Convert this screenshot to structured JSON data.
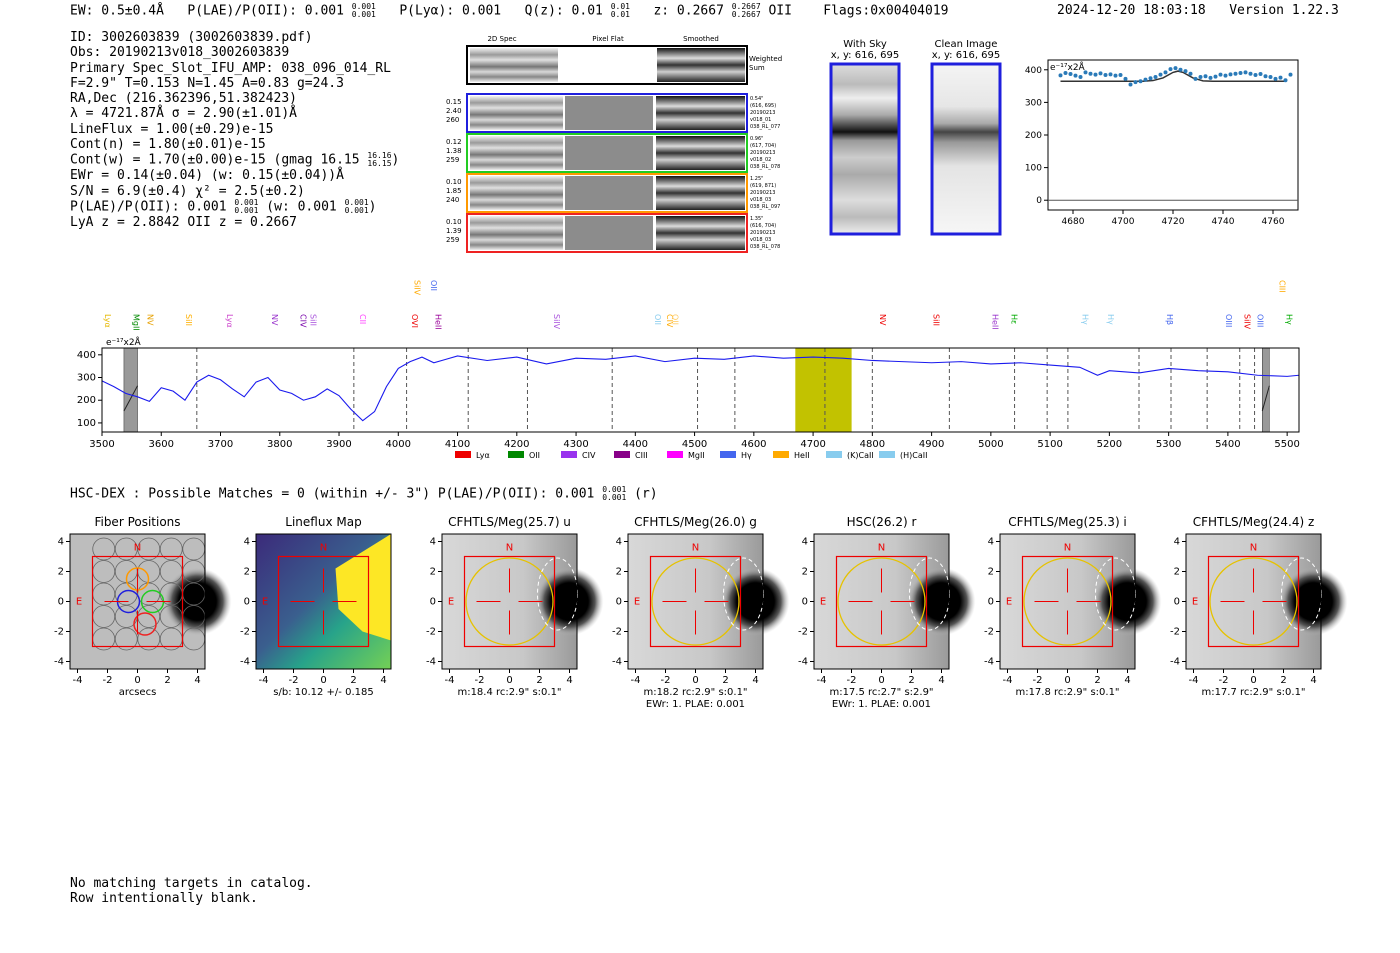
{
  "header": {
    "ew": "EW: 0.5±0.4Å",
    "plae": "P(LAE)/P(OII): 0.001",
    "plae_hi": "0.001",
    "plae_lo": "0.001",
    "plya": "P(Lyα): 0.001",
    "qz": "Q(z): 0.01",
    "qz_hi": "0.01",
    "qz_lo": "0.01",
    "z": "z: 0.2667",
    "z_hi": "0.2667",
    "z_lo": "0.2667",
    "z_line": "OII",
    "flags": "Flags:0x00404019",
    "timestamp": "2024-12-20 18:03:18",
    "version": "Version 1.22.3"
  },
  "info": {
    "id": "ID: 3002603839 (3002603839.pdf)",
    "obs": "Obs: 20190213v018_3002603839",
    "slot": "Primary Spec_Slot_IFU_AMP: 038_096_014_RL",
    "fit": "F=2.9\"  T=0.153  N=1.45  A=0.83  g=24.3",
    "radec": "RA,Dec (216.362396,51.382423)",
    "lambda": "λ = 4721.87Å  σ = 2.90(±1.01)Å",
    "lineflux": "LineFlux = 1.00(±0.29)e-15",
    "contn": "Cont(n) = 1.80(±0.01)e-15",
    "contw": "Cont(w) = 1.70(±0.00)e-15 (gmag 16.15",
    "contw_hi": "16.16",
    "contw_lo": "16.15",
    "contw_end": ")",
    "ewr": "EWr = 0.14(±0.04) (w: 0.15(±0.04))Å",
    "sn": "S/N = 6.9(±0.4)  χ² = 2.5(±0.2)",
    "plae": "P(LAE)/P(OII): 0.001",
    "plae_hi": "0.001",
    "plae_lo": "0.001",
    "plae_w": "(w: 0.001",
    "plae_w_hi": "0.001",
    "plae_w_lo": "0.001",
    "plae_w_end": ")",
    "lya": "LyA z = 2.8842   OII z = 0.2667"
  },
  "cutouts": {
    "col_headers": [
      "2D Spec",
      "Pixel Flat",
      "Smoothed"
    ],
    "weighted_label": [
      "Weighted",
      "Sum"
    ],
    "rows": [
      {
        "left": [
          "0.15",
          "2.40",
          "260"
        ],
        "right": [
          "0.54\"",
          "(616, 695)",
          "20190213",
          "v018_01",
          "038_RL_077"
        ],
        "color": "#1f1fdd"
      },
      {
        "left": [
          "0.12",
          "1.38",
          "259"
        ],
        "right": [
          "0.96\"",
          "(617, 704)",
          "20190213",
          "v018_02",
          "038_RL_078"
        ],
        "color": "#22cc22"
      },
      {
        "left": [
          "0.10",
          "1.85",
          "240"
        ],
        "right": [
          "1.25\"",
          "(619, 871)",
          "20190213",
          "v018_03",
          "038_RL_097"
        ],
        "color": "#ff9900"
      },
      {
        "left": [
          "0.10",
          "1.39",
          "259"
        ],
        "right": [
          "1.35\"",
          "(616, 704)",
          "20190213",
          "v018_03",
          "038_RL_078"
        ],
        "color": "#ee2222"
      }
    ]
  },
  "sky_panels": [
    {
      "title": "With Sky",
      "subtitle": "x, y: 616, 695"
    },
    {
      "title": "Clean Image",
      "subtitle": "x, y: 616, 695"
    }
  ],
  "hsc": {
    "line": "HSC-DEX : Possible Matches = 0 (within +/- 3\")  P(LAE)/P(OII): 0.001",
    "hi": "0.001",
    "lo": "0.001",
    "end": "(r)"
  },
  "catalog_note": [
    "No matching targets in catalog.",
    "Row intentionally blank."
  ],
  "chart_data": [
    {
      "type": "scatter",
      "name": "zoom-spectrum",
      "unit_label": "e⁻¹⁷x2Å",
      "xlim": [
        4670,
        4770
      ],
      "ylim": [
        -30,
        430
      ],
      "xticks": [
        4680,
        4700,
        4720,
        4740,
        4760
      ],
      "yticks": [
        0,
        100,
        200,
        300,
        400
      ],
      "points_x": [
        4675,
        4677,
        4679,
        4681,
        4683,
        4685,
        4687,
        4689,
        4691,
        4693,
        4695,
        4697,
        4699,
        4701,
        4703,
        4705,
        4707,
        4709,
        4711,
        4713,
        4715,
        4717,
        4719,
        4721,
        4723,
        4725,
        4727,
        4729,
        4731,
        4733,
        4735,
        4737,
        4739,
        4741,
        4743,
        4745,
        4747,
        4749,
        4751,
        4753,
        4755,
        4757,
        4759,
        4761,
        4763,
        4765,
        4767
      ],
      "points_y": [
        383,
        390,
        387,
        382,
        378,
        392,
        388,
        385,
        389,
        384,
        386,
        382,
        384,
        372,
        355,
        362,
        365,
        370,
        374,
        378,
        385,
        392,
        402,
        405,
        400,
        396,
        388,
        372,
        378,
        380,
        375,
        379,
        385,
        382,
        386,
        388,
        390,
        392,
        388,
        384,
        387,
        380,
        378,
        372,
        376,
        368,
        385
      ],
      "model_x": [
        4675,
        4700,
        4708,
        4712,
        4716,
        4720,
        4722,
        4724,
        4728,
        4732,
        4736,
        4765
      ],
      "model_y": [
        365,
        365,
        365,
        367,
        375,
        392,
        396,
        392,
        375,
        366,
        365,
        365
      ]
    },
    {
      "type": "line",
      "name": "full-spectrum",
      "unit_label": "e⁻¹⁷x2Å",
      "xlim": [
        3500,
        5520
      ],
      "ylim": [
        60,
        430
      ],
      "xticks": [
        3500,
        3600,
        3700,
        3800,
        3900,
        4000,
        4100,
        4200,
        4300,
        4400,
        4500,
        4600,
        4700,
        4800,
        4900,
        5000,
        5100,
        5200,
        5300,
        5400,
        5500
      ],
      "yticks": [
        100,
        200,
        300,
        400
      ],
      "highlight_x": [
        4670,
        4765
      ],
      "masked_x": [
        [
          3537,
          3560
        ],
        [
          5458,
          5470
        ]
      ],
      "dashed_x": [
        3660,
        3925,
        4014,
        4118,
        4218,
        4361,
        4505,
        4568,
        4720,
        4800,
        4930,
        5040,
        5095,
        5130,
        5250,
        5304,
        5365,
        5420,
        5445
      ],
      "points_x": [
        3500,
        3520,
        3540,
        3560,
        3580,
        3600,
        3620,
        3640,
        3660,
        3680,
        3700,
        3720,
        3740,
        3760,
        3780,
        3800,
        3820,
        3840,
        3860,
        3880,
        3900,
        3920,
        3940,
        3960,
        3980,
        4000,
        4020,
        4040,
        4060,
        4080,
        4100,
        4150,
        4200,
        4250,
        4300,
        4350,
        4400,
        4450,
        4500,
        4550,
        4600,
        4650,
        4700,
        4750,
        4800,
        4850,
        4900,
        4950,
        5000,
        5050,
        5100,
        5150,
        5180,
        5200,
        5250,
        5300,
        5350,
        5400,
        5450,
        5500,
        5520
      ],
      "points_y": [
        285,
        260,
        230,
        215,
        195,
        255,
        240,
        200,
        280,
        310,
        290,
        250,
        215,
        280,
        300,
        245,
        230,
        200,
        215,
        250,
        220,
        160,
        110,
        150,
        260,
        340,
        370,
        390,
        365,
        380,
        395,
        375,
        390,
        360,
        385,
        380,
        395,
        370,
        385,
        380,
        395,
        385,
        390,
        385,
        375,
        370,
        365,
        370,
        360,
        365,
        355,
        345,
        310,
        330,
        320,
        340,
        330,
        325,
        310,
        305,
        310
      ]
    }
  ],
  "line_labels": [
    {
      "label": "Lyα",
      "color": "#e6b800",
      "x": 3500
    },
    {
      "label": "MgII",
      "color": "#008800",
      "x": 3548
    },
    {
      "label": "NV",
      "color": "#e6a000",
      "x": 3572
    },
    {
      "label": "SiII",
      "color": "#ffb000",
      "x": 3637
    },
    {
      "label": "Lyα",
      "color": "#cc44cc",
      "x": 3706
    },
    {
      "label": "NV",
      "color": "#9933cc",
      "x": 3782
    },
    {
      "label": "CIV",
      "color": "#7700aa",
      "x": 3830
    },
    {
      "label": "SiII",
      "color": "#aa55dd",
      "x": 3847
    },
    {
      "label": "CII",
      "color": "#ff44ff",
      "x": 3930
    },
    {
      "label": "OVI",
      "color": "#ee0000",
      "x": 4018
    },
    {
      "label": "SiIV",
      "color": "#ffaa00",
      "x": 4022,
      "upper": true
    },
    {
      "label": "OII",
      "color": "#4466ee",
      "x": 4050,
      "upper": true
    },
    {
      "label": "HeII",
      "color": "#990099",
      "x": 4058
    },
    {
      "label": "SiIV",
      "color": "#aa55dd",
      "x": 4258
    },
    {
      "label": "OII",
      "color": "#88ccee",
      "x": 4428
    },
    {
      "label": "CIV",
      "color": "#ffaa00",
      "x": 4448
    },
    {
      "label": "OII",
      "color": "#ffcc66",
      "x": 4458
    },
    {
      "label": "NV",
      "color": "#ee0000",
      "x": 4808
    },
    {
      "label": "SiII",
      "color": "#ee0000",
      "x": 4898
    },
    {
      "label": "HeII",
      "color": "#9933cc",
      "x": 4998
    },
    {
      "label": "Hε",
      "color": "#00aa00",
      "x": 5030
    },
    {
      "label": "Hγ",
      "color": "#88ccee",
      "x": 5150
    },
    {
      "label": "Hγ",
      "color": "#88ccee",
      "x": 5193
    },
    {
      "label": "Hβ",
      "color": "#4466ee",
      "x": 5292
    },
    {
      "label": "OIII",
      "color": "#4466ee",
      "x": 5392
    },
    {
      "label": "SiIV",
      "color": "#ee0000",
      "x": 5423
    },
    {
      "label": "OIII",
      "color": "#4466ee",
      "x": 5445
    },
    {
      "label": "CIII",
      "color": "#ffaa00",
      "x": 5482,
      "upper": true
    },
    {
      "label": "Hγ",
      "color": "#00aa00",
      "x": 5494
    }
  ],
  "legend": [
    {
      "label": "Lyα",
      "color": "#ee0000"
    },
    {
      "label": "OII",
      "color": "#008800"
    },
    {
      "label": "CIV",
      "color": "#9933ee"
    },
    {
      "label": "CIII",
      "color": "#880088"
    },
    {
      "label": "MgII",
      "color": "#ff00ff"
    },
    {
      "label": "Hγ",
      "color": "#4466ee"
    },
    {
      "label": "HeII",
      "color": "#ffaa00"
    },
    {
      "label": "(K)CaII",
      "color": "#88ccee"
    },
    {
      "label": "(H)CaII",
      "color": "#88ccee"
    }
  ],
  "stamps": [
    {
      "title": "Fiber Positions",
      "footer": [
        "arcsecs"
      ],
      "type": "fiber"
    },
    {
      "title": "Lineflux Map",
      "footer": [
        "s/b: 10.12 +/- 0.185"
      ],
      "type": "lineflux"
    },
    {
      "title": "CFHTLS/Meg(25.7) u",
      "footer": [
        "m:18.4 rc:2.9\"  s:0.1\""
      ],
      "type": "img"
    },
    {
      "title": "CFHTLS/Meg(26.0) g",
      "footer": [
        "m:18.2 rc:2.9\"  s:0.1\"",
        "EWr: 1. PLAE: 0.001"
      ],
      "type": "img"
    },
    {
      "title": "HSC(26.2) r",
      "footer": [
        "m:17.5  rc:2.7\"  s:2.9\"",
        "EWr: 1. PLAE: 0.001"
      ],
      "type": "img"
    },
    {
      "title": "CFHTLS/Meg(25.3) i",
      "footer": [
        "m:17.8 rc:2.9\"  s:0.1\""
      ],
      "type": "img"
    },
    {
      "title": "CFHTLS/Meg(24.4) z",
      "footer": [
        "m:17.7 rc:2.9\"  s:0.1\""
      ],
      "type": "img"
    }
  ],
  "stamp_axis": {
    "ticks": [
      -4,
      -2,
      0,
      2,
      4
    ],
    "north": "N",
    "east": "E"
  }
}
